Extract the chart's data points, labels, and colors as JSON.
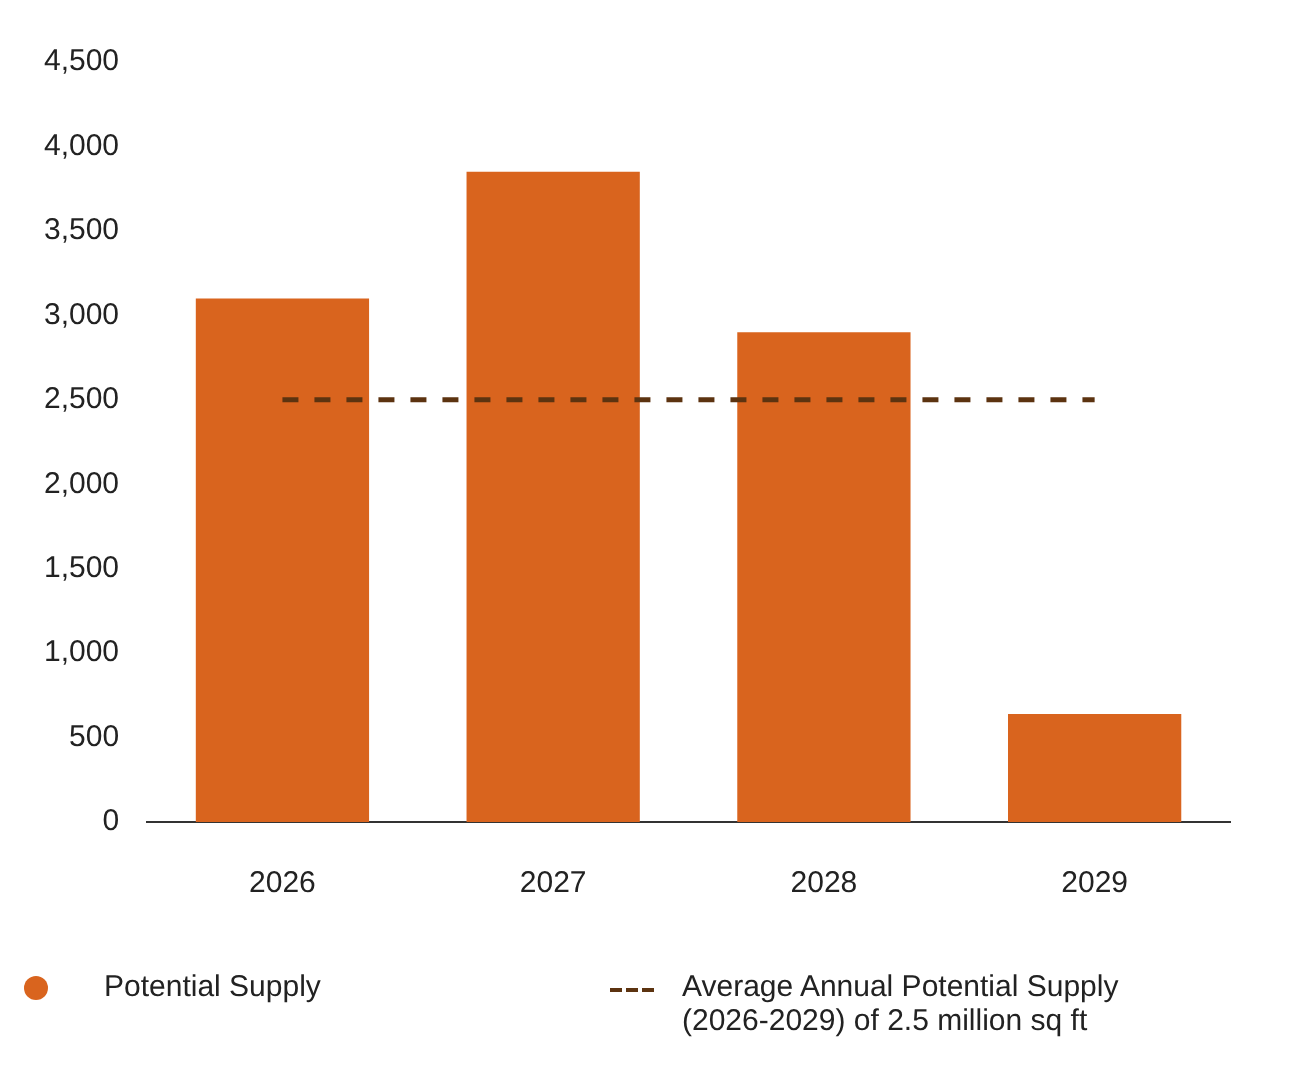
{
  "chart_data": {
    "type": "bar",
    "categories": [
      "2026",
      "2027",
      "2028",
      "2029"
    ],
    "series": [
      {
        "name": "Potential Supply",
        "color": "#d9641e",
        "values": [
          3100,
          3850,
          2900,
          640
        ]
      },
      {
        "name": "Average Annual Potential Supply (2026‑2029) of 2.5 million sq ft",
        "type": "line",
        "color": "#5c3310",
        "line_style": "dashed",
        "marker": "none",
        "values": [
          2500,
          2500,
          2500,
          2500
        ]
      }
    ],
    "ylim": [
      0,
      4500
    ],
    "yticks": [
      0,
      500,
      {
        "value": 1000,
        "label": "1,000"
      },
      {
        "value": 1500,
        "label": "1,500"
      },
      {
        "value": 2000,
        "label": "2,000"
      },
      {
        "value": 2500,
        "label": "2,500"
      },
      {
        "value": 3000,
        "label": "3,000"
      },
      {
        "value": 3500,
        "label": "3,500"
      },
      {
        "value": 4000,
        "label": "4,000"
      },
      {
        "value": 4500,
        "label": "4,500"
      }
    ],
    "legend": "bottom"
  }
}
